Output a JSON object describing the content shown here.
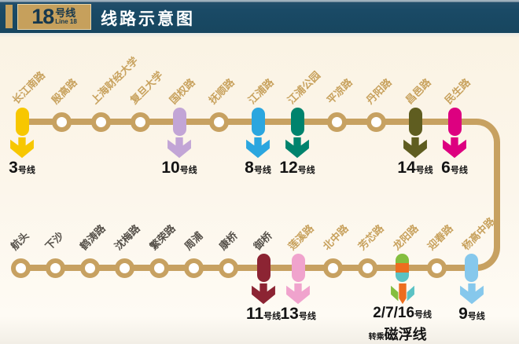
{
  "header": {
    "badge_number": "18",
    "badge_suffix": "号线",
    "badge_sub": "Line 18",
    "title": "线路示意图"
  },
  "colors": {
    "header_bg": "#1A4A66",
    "gold": "#C6A05C",
    "line_color": "#C7A161",
    "station_label": "#C8A25E",
    "dim_station_label": "#56514A",
    "transfer_label_text": "#141414"
  },
  "route": {
    "top_stations": [
      {
        "name": "长江南路",
        "transfer": {
          "num": "3",
          "unit": "号线",
          "color": "#F7C700"
        }
      },
      {
        "name": "殷高路"
      },
      {
        "name": "上海财经大学"
      },
      {
        "name": "复旦大学"
      },
      {
        "name": "国权路",
        "transfer": {
          "num": "10",
          "unit": "号线",
          "color": "#C2A5D6"
        }
      },
      {
        "name": "抚顺路"
      },
      {
        "name": "江浦路",
        "transfer": {
          "num": "8",
          "unit": "号线",
          "color": "#2BA6DF"
        }
      },
      {
        "name": "江浦公园",
        "transfer": {
          "num": "12",
          "unit": "号线",
          "color": "#00836D"
        }
      },
      {
        "name": "平凉路"
      },
      {
        "name": "丹阳路"
      },
      {
        "name": "昌邑路",
        "transfer": {
          "num": "14",
          "unit": "号线",
          "color": "#5F5D20"
        }
      },
      {
        "name": "民生路",
        "transfer": {
          "num": "6",
          "unit": "号线",
          "color": "#DD0080"
        }
      }
    ],
    "bottom_stations": [
      {
        "name": "航头",
        "dim": true
      },
      {
        "name": "下沙",
        "dim": true
      },
      {
        "name": "鹤涛路",
        "dim": true
      },
      {
        "name": "沈梅路",
        "dim": true
      },
      {
        "name": "繁荣路",
        "dim": true
      },
      {
        "name": "周浦",
        "dim": true
      },
      {
        "name": "康桥",
        "dim": true
      },
      {
        "name": "御桥",
        "dim": true,
        "transfer": {
          "num": "11",
          "unit": "号线",
          "color": "#8C2433"
        }
      },
      {
        "name": "莲溪路",
        "transfer": {
          "num": "13",
          "unit": "号线",
          "color": "#F0A3CD"
        }
      },
      {
        "name": "北中路"
      },
      {
        "name": "芳芯路"
      },
      {
        "name": "龙阳路",
        "transfer": {
          "num": "2/7/16",
          "unit": "号线",
          "colors": [
            "#84BE3F",
            "#ED6D1F",
            "#5BC2C4"
          ],
          "extra_prefix": "转乘",
          "extra": "磁浮线"
        }
      },
      {
        "name": "迎春路"
      },
      {
        "name": "杨高中路",
        "transfer": {
          "num": "9",
          "unit": "号线",
          "color": "#86C8EC"
        }
      }
    ]
  }
}
